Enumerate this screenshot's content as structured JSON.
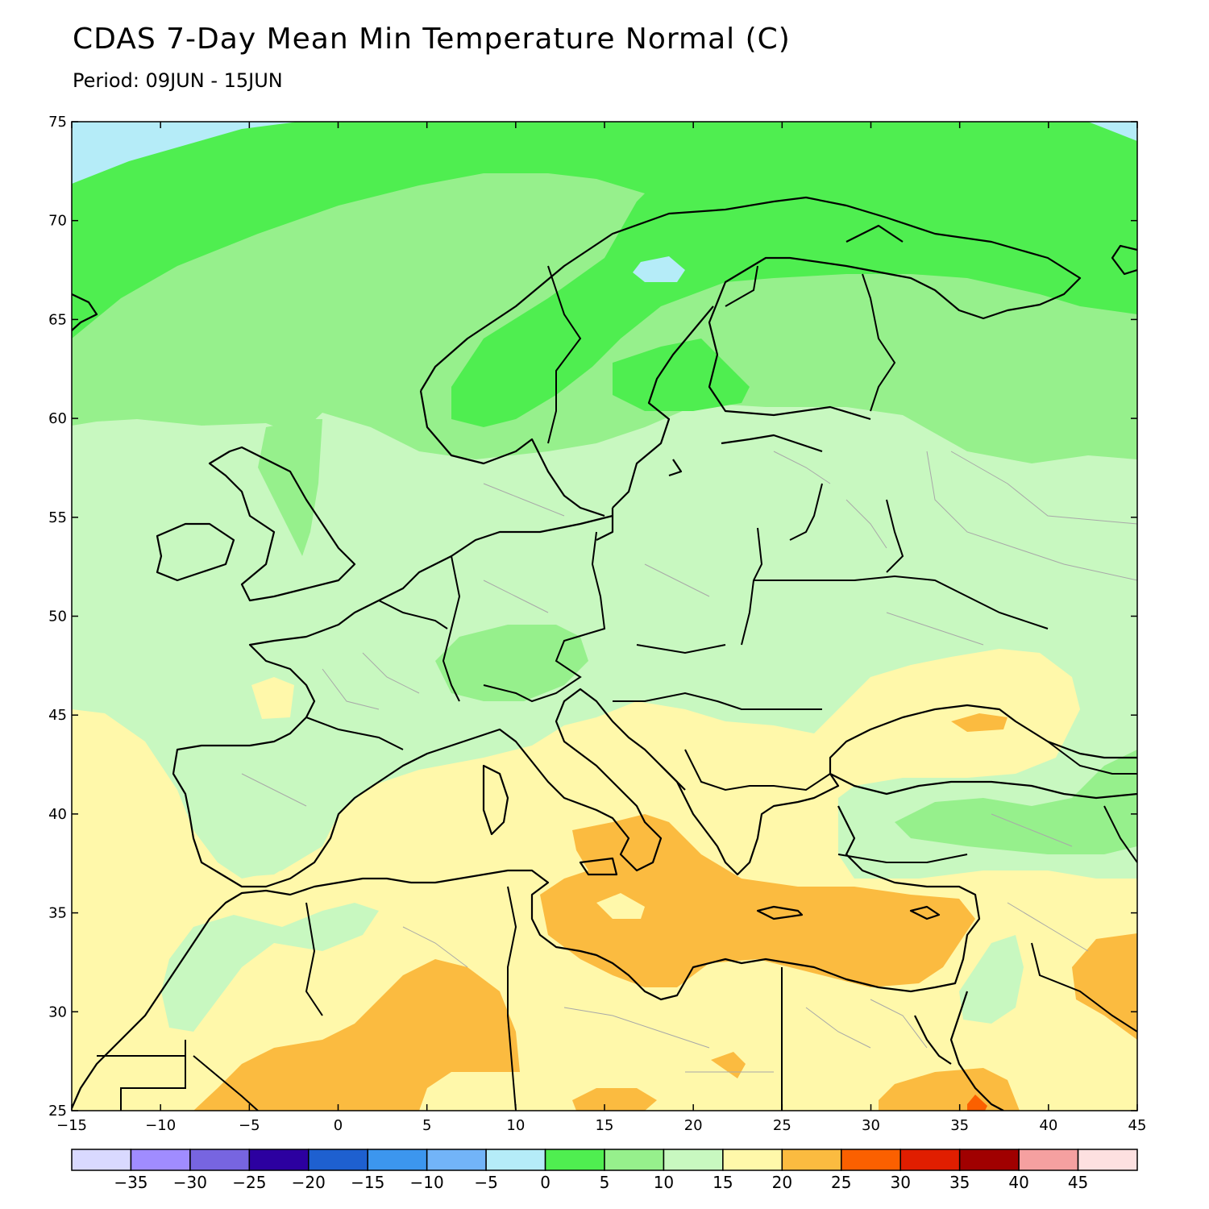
{
  "title": "CDAS 7-Day Mean Min Temperature Normal (C)",
  "subtitle": "Period: 09JUN - 15JUN",
  "map": {
    "lon_range": [
      -15,
      45
    ],
    "lat_range": [
      25,
      75
    ],
    "lon_ticks": [
      "-15",
      "-10",
      "-5",
      "0",
      "5",
      "10",
      "15",
      "20",
      "25",
      "30",
      "35",
      "40",
      "45"
    ],
    "lat_ticks": [
      "25",
      "30",
      "35",
      "40",
      "45",
      "50",
      "55",
      "60",
      "65",
      "70",
      "75"
    ],
    "region": "Europe, North Africa and the Middle East"
  },
  "colorbar": {
    "labels": [
      "-35",
      "-30",
      "-25",
      "-20",
      "-15",
      "-10",
      "-5",
      "0",
      "5",
      "10",
      "15",
      "20",
      "25",
      "30",
      "35",
      "40",
      "45"
    ],
    "colors": [
      "#d9d9ff",
      "#a08cff",
      "#7765e0",
      "#2c00a0",
      "#1e60d0",
      "#3c96ee",
      "#72b4f8",
      "#b5ecf8",
      "#4fee50",
      "#96f08c",
      "#c8f8c0",
      "#fff8aa",
      "#fbbb40",
      "#fb6000",
      "#e01e00",
      "#a00000",
      "#f5a0a0",
      "#fde0e0"
    ]
  },
  "legend_colors": {
    "cold": "#b5ecf8",
    "0_5": "#4fee50",
    "5_10": "#96f08c",
    "10_15": "#c8f8c0",
    "15_20": "#fff8aa",
    "20_25": "#fbbb40",
    "25_30": "#fb6000"
  }
}
